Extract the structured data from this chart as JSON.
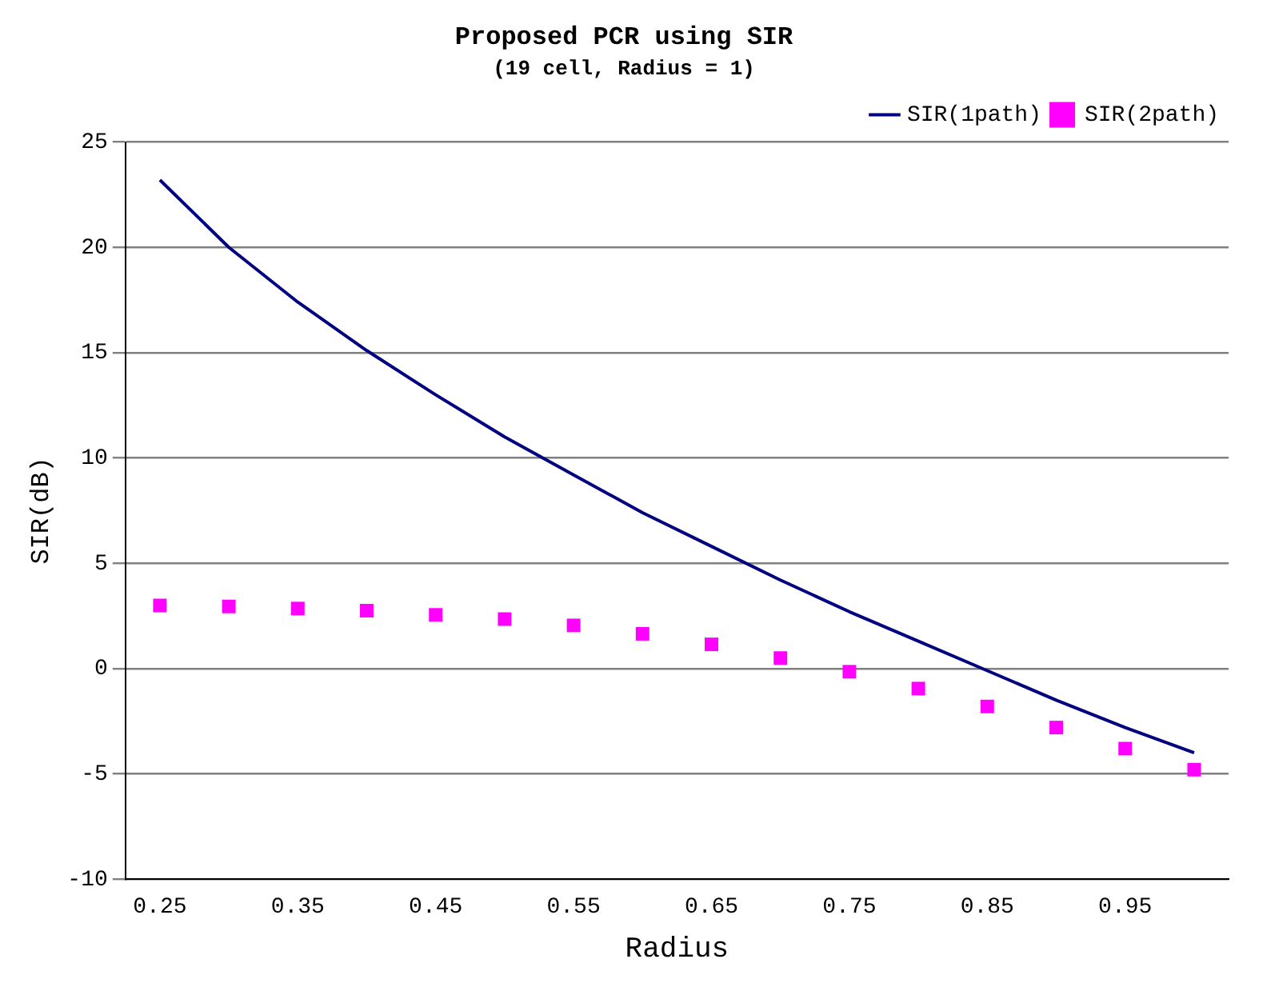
{
  "chart_data": {
    "type": "line",
    "title": "Proposed PCR using SIR",
    "subtitle": "(19 cell, Radius = 1)",
    "xlabel": "Radius",
    "ylabel": "SIR(dB)",
    "categories": [
      "0.25",
      null,
      "0.35",
      null,
      "0.45",
      null,
      "0.55",
      null,
      "0.65",
      null,
      "0.75",
      null,
      "0.85",
      null,
      "0.95",
      null
    ],
    "series": [
      {
        "name": "SIR(1path)",
        "color": "#000080",
        "marker": "none",
        "line_style": "solid",
        "values": [
          23.2,
          20.0,
          17.4,
          15.1,
          13.0,
          11.0,
          9.2,
          7.4,
          5.8,
          4.2,
          2.7,
          1.3,
          -0.1,
          -1.5,
          -2.8,
          -4.0
        ]
      },
      {
        "name": "SIR(2path)",
        "type": "scatter",
        "color": "#ff00ff",
        "marker": "square",
        "values": [
          3.0,
          2.95,
          2.85,
          2.75,
          2.55,
          2.35,
          2.05,
          1.65,
          1.15,
          0.5,
          -0.15,
          -0.95,
          -1.8,
          -2.8,
          -3.8,
          -4.8
        ]
      }
    ],
    "ylim": [
      -10,
      25
    ],
    "yticks": [
      -10,
      -5,
      0,
      5,
      10,
      15,
      20,
      25
    ],
    "grid": "y",
    "legend": "top right"
  }
}
